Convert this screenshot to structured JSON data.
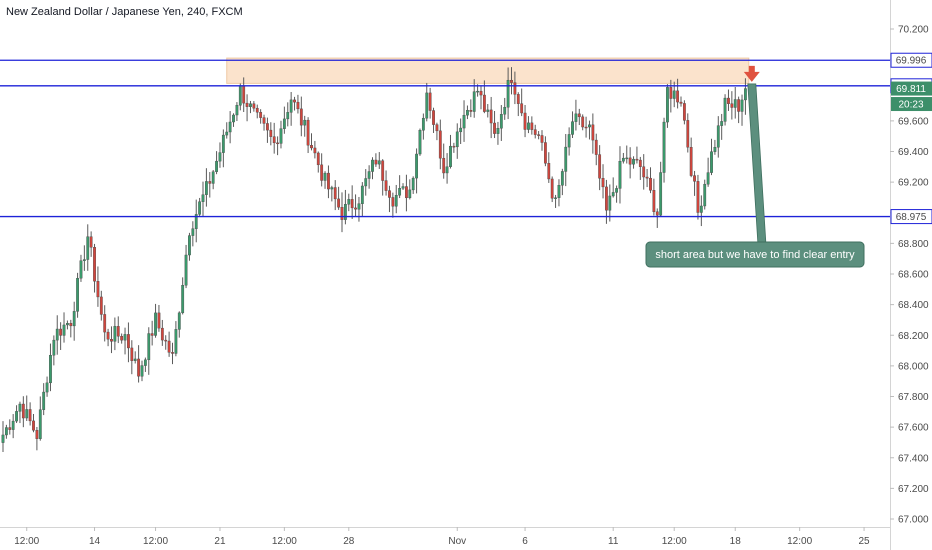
{
  "header": {
    "title": "New Zealand Dollar / Japanese Yen, 240, FXCM"
  },
  "chart_data": {
    "type": "candlestick",
    "symbol": "NZDJPY",
    "interval": "240",
    "source": "FXCM",
    "ylim": [
      67.0,
      70.3
    ],
    "y_ticks": [
      "70.200",
      "70.000",
      "69.800",
      "69.600",
      "69.400",
      "69.200",
      "69.000",
      "68.800",
      "68.600",
      "68.400",
      "68.200",
      "68.000",
      "67.800",
      "67.600",
      "67.400",
      "67.200",
      "67.000"
    ],
    "x_ticks": [
      "12:00",
      "14",
      "12:00",
      "21",
      "12:00",
      "28",
      "Nov",
      "6",
      "11",
      "12:00",
      "18",
      "12:00",
      "25"
    ],
    "x_tick_index": [
      7,
      27,
      45,
      64,
      83,
      102,
      134,
      154,
      180,
      198,
      216,
      235,
      254
    ],
    "n_candles": 262,
    "horizontal_lines": [
      {
        "value": 69.996,
        "label": "69.996",
        "color": "#1e22d8"
      },
      {
        "value": 69.829,
        "label": "69.829",
        "color": "#1e22d8"
      },
      {
        "value": 68.975,
        "label": "68.975",
        "color": "#1e22d8"
      }
    ],
    "price_labels": [
      {
        "value": 69.811,
        "label": "69.811",
        "color": "#3d8f6a"
      },
      {
        "value": 69.71,
        "label": "20:23",
        "color": "#3d8f6a"
      }
    ],
    "zone": {
      "from_index": 66,
      "to_index": 220,
      "top": 70.01,
      "bottom": 69.845,
      "color": "#fbe3cc"
    },
    "annotation": {
      "text": "short area but we have to find clear entry",
      "arrow_index": 220,
      "arrow_top": 69.92
    },
    "anchors": [
      {
        "i": 0,
        "v": 67.55
      },
      {
        "i": 5,
        "v": 67.75
      },
      {
        "i": 10,
        "v": 67.55
      },
      {
        "i": 15,
        "v": 68.2
      },
      {
        "i": 20,
        "v": 68.3
      },
      {
        "i": 25,
        "v": 68.85
      },
      {
        "i": 30,
        "v": 68.2
      },
      {
        "i": 36,
        "v": 68.2
      },
      {
        "i": 40,
        "v": 67.95
      },
      {
        "i": 45,
        "v": 68.3
      },
      {
        "i": 50,
        "v": 68.05
      },
      {
        "i": 55,
        "v": 68.9
      },
      {
        "i": 60,
        "v": 69.15
      },
      {
        "i": 64,
        "v": 69.4
      },
      {
        "i": 70,
        "v": 69.8
      },
      {
        "i": 75,
        "v": 69.6
      },
      {
        "i": 80,
        "v": 69.45
      },
      {
        "i": 85,
        "v": 69.75
      },
      {
        "i": 90,
        "v": 69.5
      },
      {
        "i": 95,
        "v": 69.2
      },
      {
        "i": 100,
        "v": 69.0
      },
      {
        "i": 105,
        "v": 69.1
      },
      {
        "i": 110,
        "v": 69.35
      },
      {
        "i": 115,
        "v": 69.1
      },
      {
        "i": 120,
        "v": 69.15
      },
      {
        "i": 125,
        "v": 69.8
      },
      {
        "i": 130,
        "v": 69.3
      },
      {
        "i": 135,
        "v": 69.6
      },
      {
        "i": 140,
        "v": 69.8
      },
      {
        "i": 145,
        "v": 69.5
      },
      {
        "i": 150,
        "v": 69.9
      },
      {
        "i": 154,
        "v": 69.6
      },
      {
        "i": 158,
        "v": 69.5
      },
      {
        "i": 163,
        "v": 69.05
      },
      {
        "i": 168,
        "v": 69.6
      },
      {
        "i": 173,
        "v": 69.55
      },
      {
        "i": 178,
        "v": 69.0
      },
      {
        "i": 183,
        "v": 69.35
      },
      {
        "i": 188,
        "v": 69.3
      },
      {
        "i": 193,
        "v": 69.0
      },
      {
        "i": 196,
        "v": 69.8
      },
      {
        "i": 200,
        "v": 69.75
      },
      {
        "i": 205,
        "v": 69.0
      },
      {
        "i": 208,
        "v": 69.3
      },
      {
        "i": 213,
        "v": 69.7
      },
      {
        "i": 217,
        "v": 69.7
      },
      {
        "i": 219,
        "v": 69.811
      }
    ]
  },
  "colors": {
    "up": "#3b9a6c",
    "down": "#d0453d",
    "line": "#1e22d8",
    "annotation_bg": "#5c8f7e",
    "arrow": "#e0523f"
  }
}
